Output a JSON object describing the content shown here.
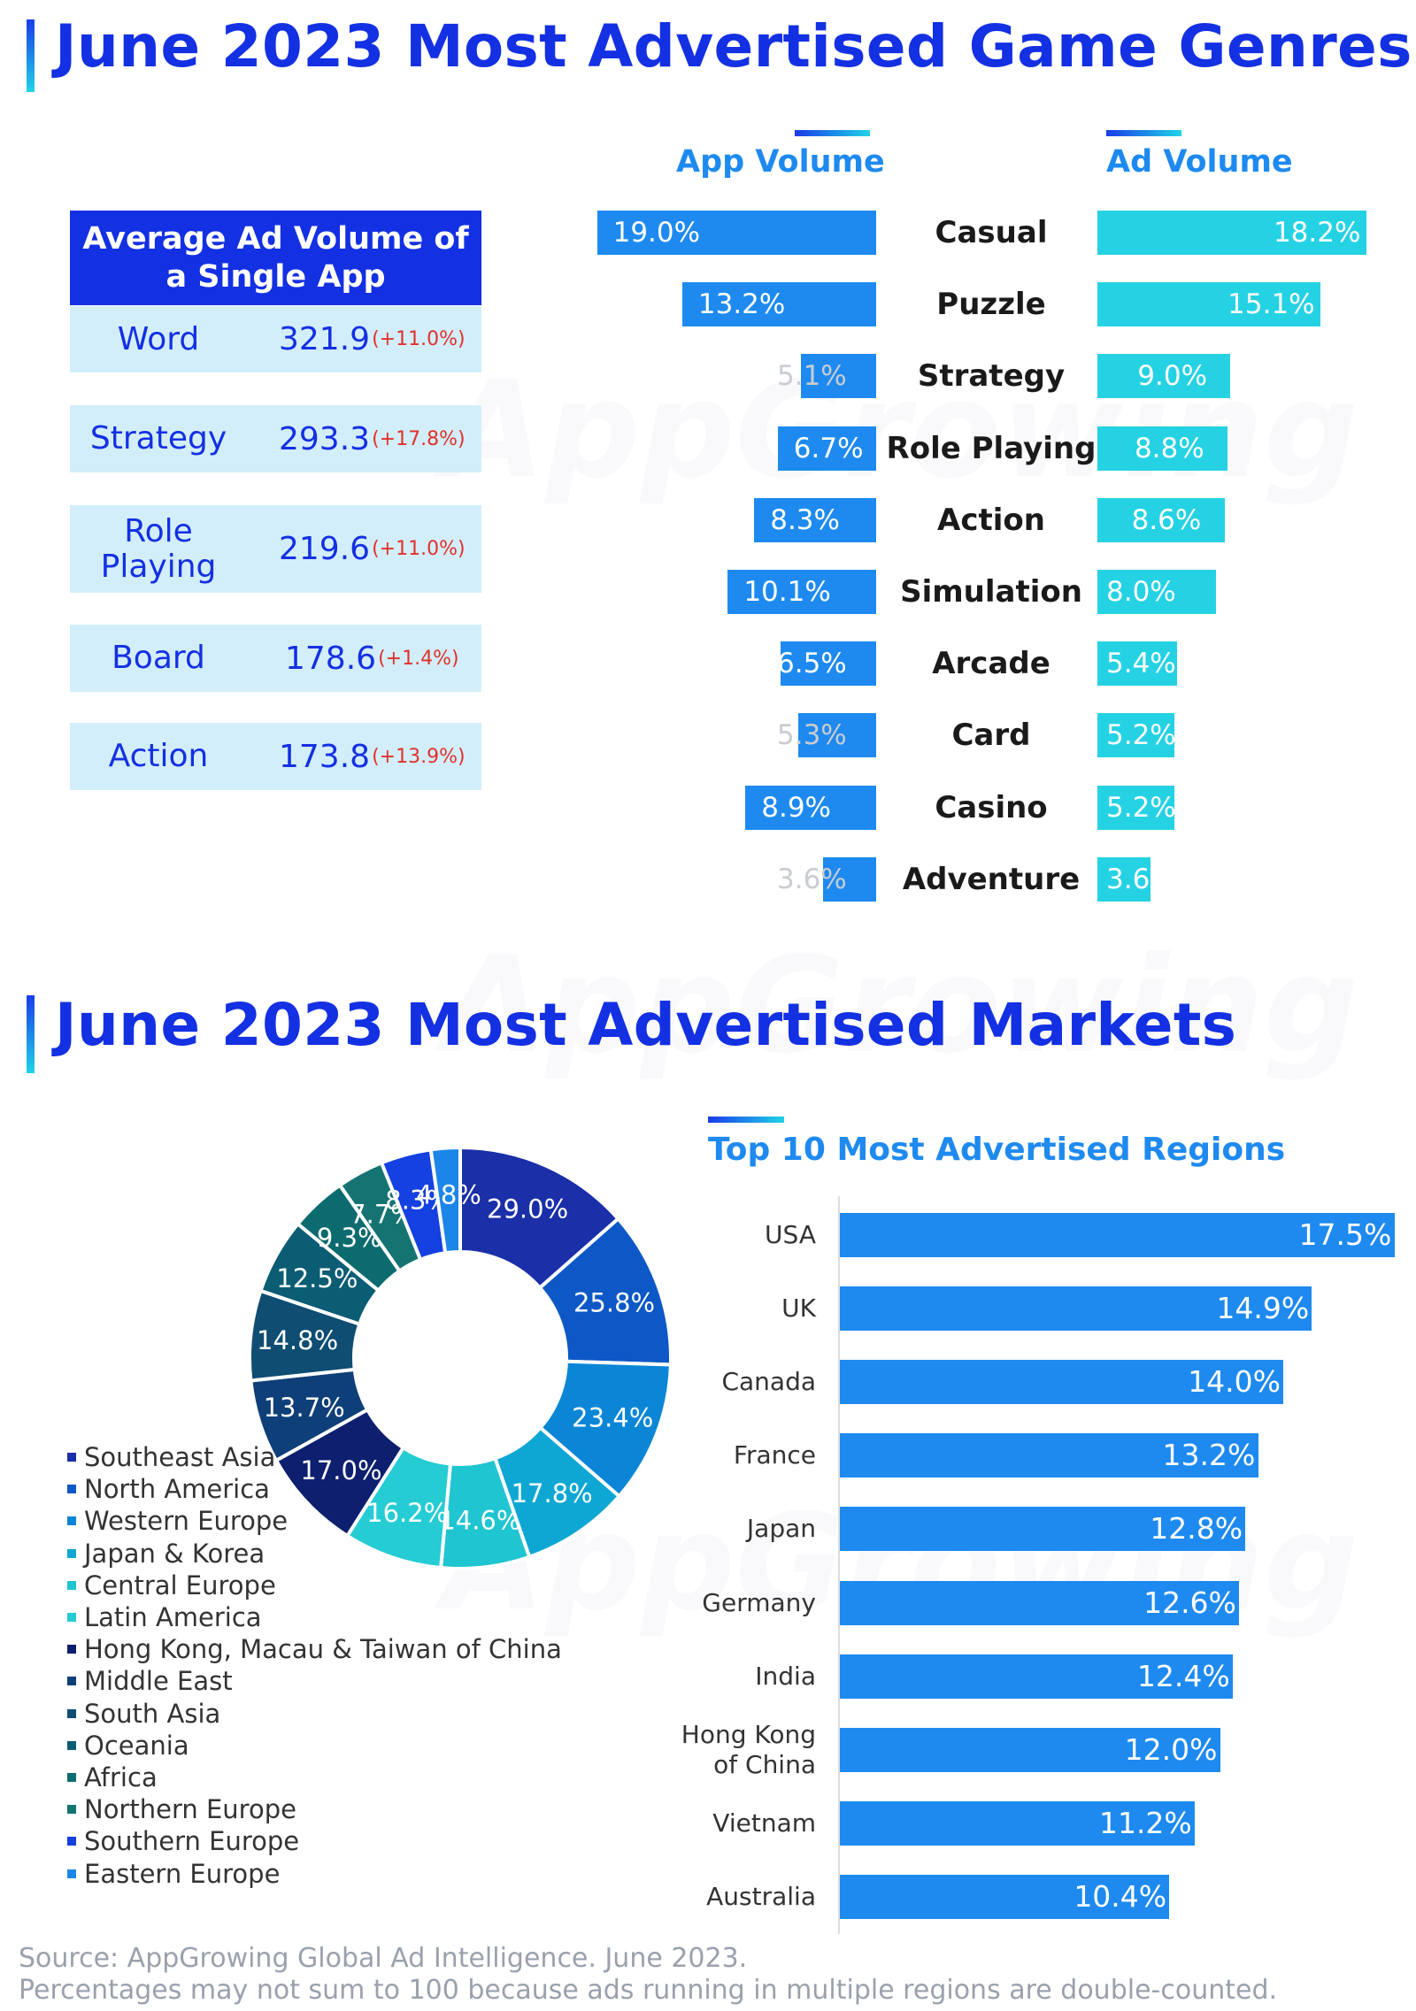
{
  "genres_section": {
    "title": "June 2023 Most Advertised Game Genres",
    "app_volume_label": "App Volume",
    "ad_volume_label": "Ad Volume",
    "avg_table": {
      "header": "Average Ad Volume of a Single App",
      "rows": [
        {
          "name": "Word",
          "value": "321.9",
          "change": "(+11.0%)"
        },
        {
          "name": "Strategy",
          "value": "293.3",
          "change": "(+17.8%)"
        },
        {
          "name": "Role Playing",
          "value": "219.6",
          "change": "(+11.0%)"
        },
        {
          "name": "Board",
          "value": "178.6",
          "change": "(+1.4%)"
        },
        {
          "name": "Action",
          "value": "173.8",
          "change": "(+13.9%)"
        }
      ]
    }
  },
  "markets_section": {
    "title": "June 2023 Most Advertised Markets",
    "regions_title": "Top 10 Most Advertised Regions"
  },
  "footer": {
    "source": "Source: AppGrowing Global Ad Intelligence. June 2023.",
    "note": "Percentages may not sum to 100 because ads running in multiple regions are double-counted."
  },
  "watermark": "AppGrowing",
  "colors": {
    "title_blue": "#1330e3",
    "app_bar": "#1e8af0",
    "ad_bar": "#25d2e3",
    "change_red": "#e0322b"
  },
  "chart_data": [
    {
      "type": "bar",
      "orientation": "diverging-horizontal",
      "categories": [
        "Casual",
        "Puzzle",
        "Strategy",
        "Role Playing",
        "Action",
        "Simulation",
        "Arcade",
        "Card",
        "Casino",
        "Adventure"
      ],
      "series": [
        {
          "name": "App Volume",
          "values": [
            19.0,
            13.2,
            5.1,
            6.7,
            8.3,
            10.1,
            6.5,
            5.3,
            8.9,
            3.6
          ],
          "labels": [
            "19.0%",
            "13.2%",
            "5.1%",
            "6.7%",
            "8.3%",
            "10.1%",
            "6.5%",
            "5.3%",
            "8.9%",
            "3.6%"
          ]
        },
        {
          "name": "Ad Volume",
          "values": [
            18.2,
            15.1,
            9.0,
            8.8,
            8.6,
            8.0,
            5.4,
            5.2,
            5.2,
            3.6
          ],
          "labels": [
            "18.2%",
            "15.1%",
            "9.0%",
            "8.8%",
            "8.6%",
            "8.0%",
            "5.4%",
            "5.2%",
            "5.2%",
            "3.6%"
          ]
        }
      ]
    },
    {
      "type": "pie",
      "donut": true,
      "categories": [
        "Southeast Asia",
        "North America",
        "Western Europe",
        "Japan & Korea",
        "Central Europe",
        "Latin America",
        "Hong Kong, Macau & Taiwan of China",
        "Middle East",
        "South Asia",
        "Oceania",
        "Africa",
        "Northern Europe",
        "Southern Europe",
        "Eastern Europe"
      ],
      "values": [
        29.0,
        25.8,
        23.4,
        17.8,
        14.6,
        16.2,
        17.0,
        13.7,
        14.8,
        12.5,
        9.3,
        7.7,
        8.3,
        4.8
      ],
      "labels": [
        "29.0%",
        "25.8%",
        "23.4%",
        "17.8%",
        "14.6%",
        "16.2%",
        "17.0%",
        "13.7%",
        "14.8%",
        "12.5%",
        "9.3%",
        "7.7%",
        "8.3%",
        "4.8%"
      ],
      "colors": [
        "#1a2fa8",
        "#0d58c6",
        "#0b86d6",
        "#0ea7d4",
        "#1fc5d0",
        "#25ccd3",
        "#0d1f6e",
        "#0f3f78",
        "#0f4d72",
        "#0b5d73",
        "#0c6b6e",
        "#157472",
        "#1541e0",
        "#1c86e8"
      ],
      "legend_position": "left"
    },
    {
      "type": "bar",
      "orientation": "horizontal",
      "title": "Top 10 Most Advertised Regions",
      "categories": [
        "USA",
        "UK",
        "Canada",
        "France",
        "Japan",
        "Germany",
        "India",
        "Hong Kong of China",
        "Vietnam",
        "Australia"
      ],
      "category_lines": [
        [
          "USA"
        ],
        [
          "UK"
        ],
        [
          "Canada"
        ],
        [
          "France"
        ],
        [
          "Japan"
        ],
        [
          "Germany"
        ],
        [
          "India"
        ],
        [
          "Hong Kong",
          "of China"
        ],
        [
          "Vietnam"
        ],
        [
          "Australia"
        ]
      ],
      "values": [
        17.5,
        14.9,
        14.0,
        13.2,
        12.8,
        12.6,
        12.4,
        12.0,
        11.2,
        10.4
      ],
      "labels": [
        "17.5%",
        "14.9%",
        "14.0%",
        "13.2%",
        "12.8%",
        "12.6%",
        "12.4%",
        "12.0%",
        "11.2%",
        "10.4%"
      ]
    }
  ]
}
